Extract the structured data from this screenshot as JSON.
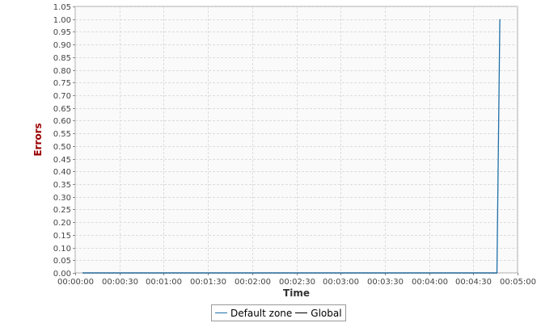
{
  "chart_data": {
    "type": "line",
    "xlabel": "Time",
    "ylabel": "Errors",
    "x_tick_labels": [
      "00:00:00",
      "00:00:30",
      "00:01:00",
      "00:01:30",
      "00:02:00",
      "00:02:30",
      "00:03:00",
      "00:03:30",
      "00:04:00",
      "00:04:30",
      "00:05:00"
    ],
    "xlim_seconds": [
      0,
      300
    ],
    "ylim": [
      0,
      1.05
    ],
    "y_ticks": [
      0.0,
      0.05,
      0.1,
      0.15,
      0.2,
      0.25,
      0.3,
      0.35,
      0.4,
      0.45,
      0.5,
      0.55,
      0.6,
      0.65,
      0.7,
      0.75,
      0.8,
      0.85,
      0.9,
      0.95,
      1.0,
      1.05
    ],
    "y_tick_labels": [
      "0.00",
      "0.05",
      "0.10",
      "0.15",
      "0.20",
      "0.25",
      "0.30",
      "0.35",
      "0.40",
      "0.45",
      "0.50",
      "0.55",
      "0.60",
      "0.65",
      "0.70",
      "0.75",
      "0.80",
      "0.85",
      "0.90",
      "0.95",
      "1.00",
      "1.05"
    ],
    "grid": true,
    "legend_position": "bottom",
    "series": [
      {
        "name": "Default zone",
        "color": "#1f6fa8",
        "points": [
          {
            "t": "00:00:05",
            "value": 0
          },
          {
            "t": "00:04:46",
            "value": 0
          },
          {
            "t": "00:04:48",
            "value": 1.0
          }
        ]
      },
      {
        "name": "Global",
        "color": "#000000",
        "points": [
          {
            "t": "00:00:05",
            "value": 0
          },
          {
            "t": "00:04:46",
            "value": 0
          }
        ]
      }
    ],
    "colors": {
      "ylabel": "#990000",
      "xlabel": "#333333",
      "grid": "#dcdcdc",
      "plot_background": "#fafafa",
      "axis": "#aaaaaa"
    }
  }
}
